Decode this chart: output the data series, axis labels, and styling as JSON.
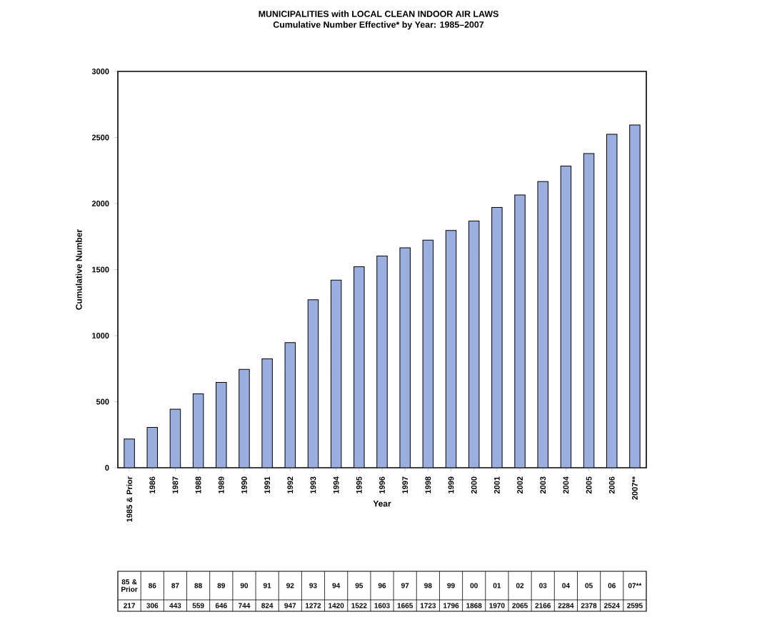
{
  "chart_data": {
    "type": "bar",
    "title": "MUNICIPALITIES with LOCAL CLEAN INDOOR AIR LAWS",
    "subtitle": "Cumulative Number Effective* by Year: 1985–2007",
    "xlabel": "Year",
    "ylabel": "Cumulative Number",
    "categories": [
      "1985 & Prior",
      "1986",
      "1987",
      "1988",
      "1989",
      "1990",
      "1991",
      "1992",
      "1993",
      "1994",
      "1995",
      "1996",
      "1997",
      "1998",
      "1999",
      "2000",
      "2001",
      "2002",
      "2003",
      "2004",
      "2005",
      "2006",
      "2007**"
    ],
    "values": [
      217,
      306,
      443,
      559,
      646,
      744,
      824,
      947,
      1272,
      1420,
      1522,
      1603,
      1665,
      1723,
      1796,
      1868,
      1970,
      2065,
      2166,
      2284,
      2378,
      2524,
      2595
    ],
    "value_labels": [
      "217",
      "306",
      "443",
      "559",
      "646",
      "744",
      "824",
      "947",
      "1272",
      "1420",
      "1522",
      "1603",
      "1665",
      "1723",
      "1796",
      "1868",
      "1970",
      "2065",
      "2166",
      "2284",
      "2378",
      "2524",
      "2595"
    ],
    "color": "#9aaee0",
    "ylim": [
      0,
      3000
    ],
    "yticks": [
      0,
      500,
      1000,
      1500,
      2000,
      2500,
      3000
    ],
    "annotations": [
      "85 & Prior",
      "86",
      "87",
      "88",
      "89",
      "90",
      "91",
      "92",
      "93",
      "94",
      "95",
      "96",
      "97",
      "98",
      "99",
      "00",
      "01",
      "02",
      "03",
      "04",
      "05",
      "06",
      "07**"
    ]
  }
}
